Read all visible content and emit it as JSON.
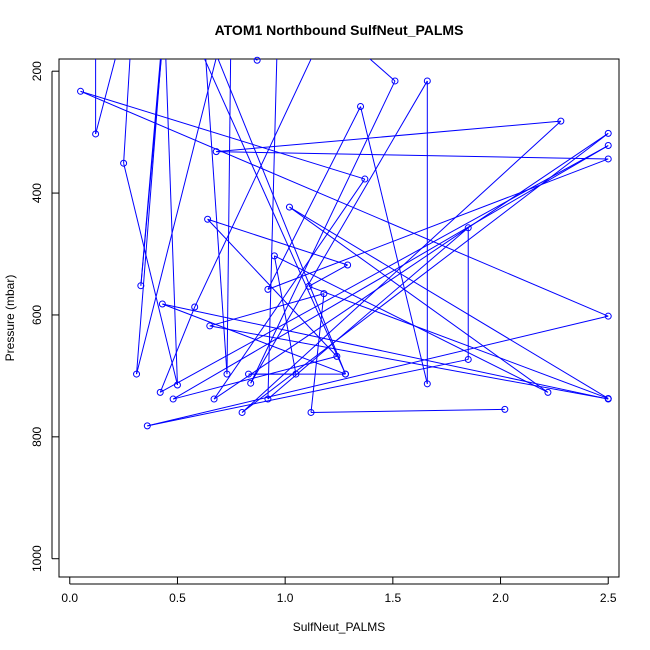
{
  "chart_data": {
    "type": "line",
    "title": "ATOM1 Northbound SulfNeut_PALMS",
    "xlabel": "SulfNeut_PALMS",
    "ylabel": "Pressure (mbar)",
    "xlim": [
      -0.05,
      2.55
    ],
    "ylim": [
      1030,
      180
    ],
    "y_reversed": true,
    "xticks": [
      0.0,
      0.5,
      1.0,
      1.5,
      2.0,
      2.5
    ],
    "xtick_labels": [
      "0.0",
      "0.5",
      "1.0",
      "1.5",
      "2.0",
      "2.5"
    ],
    "yticks": [
      200,
      400,
      600,
      800,
      1000
    ],
    "ytick_labels": [
      "200",
      "400",
      "600",
      "800",
      "1000"
    ],
    "grid": false,
    "color": "#0000ff",
    "marker": "open-circle",
    "series": [
      {
        "points": [
          [
            0.12,
            120
          ],
          [
            0.12,
            303
          ],
          [
            0.3,
            60
          ],
          [
            0.25,
            351
          ],
          [
            0.5,
            715
          ],
          [
            0.44,
            120
          ],
          [
            0.33,
            552
          ],
          [
            0.45,
            60
          ],
          [
            0.31,
            697
          ],
          [
            0.75,
            80
          ],
          [
            0.73,
            697
          ],
          [
            0.62,
            120
          ],
          [
            1.28,
            697
          ],
          [
            0.55,
            120
          ],
          [
            0.87,
            182
          ],
          [
            0.97,
            60
          ],
          [
            0.92,
            738
          ],
          [
            1.85,
            457
          ],
          [
            1.85,
            673
          ],
          [
            0.36,
            782
          ],
          [
            2.5,
            602
          ],
          [
            0.05,
            233
          ],
          [
            1.37,
            377
          ],
          [
            0.67,
            738
          ],
          [
            2.5,
            302
          ],
          [
            0.8,
            760
          ],
          [
            2.28,
            282
          ],
          [
            0.68,
            332
          ],
          [
            2.5,
            344
          ],
          [
            0.92,
            558
          ],
          [
            1.35,
            258
          ],
          [
            1.66,
            713
          ],
          [
            1.66,
            216
          ],
          [
            0.84,
            712
          ],
          [
            1.51,
            216
          ],
          [
            1.2,
            120
          ],
          [
            0.58,
            587
          ],
          [
            0.42,
            727
          ],
          [
            2.5,
            322
          ],
          [
            0.48,
            738
          ],
          [
            1.24,
            668
          ],
          [
            0.64,
            443
          ],
          [
            1.29,
            518
          ],
          [
            1.11,
            553
          ],
          [
            2.5,
            737
          ],
          [
            1.02,
            423
          ],
          [
            2.22,
            727
          ],
          [
            0.95,
            503
          ],
          [
            1.05,
            697
          ],
          [
            0.83,
            697
          ],
          [
            1.28,
            697
          ],
          [
            0.43,
            582
          ],
          [
            2.5,
            738
          ],
          [
            0.65,
            618
          ],
          [
            1.18,
            565
          ],
          [
            1.12,
            760
          ],
          [
            2.02,
            755
          ]
        ]
      }
    ]
  }
}
